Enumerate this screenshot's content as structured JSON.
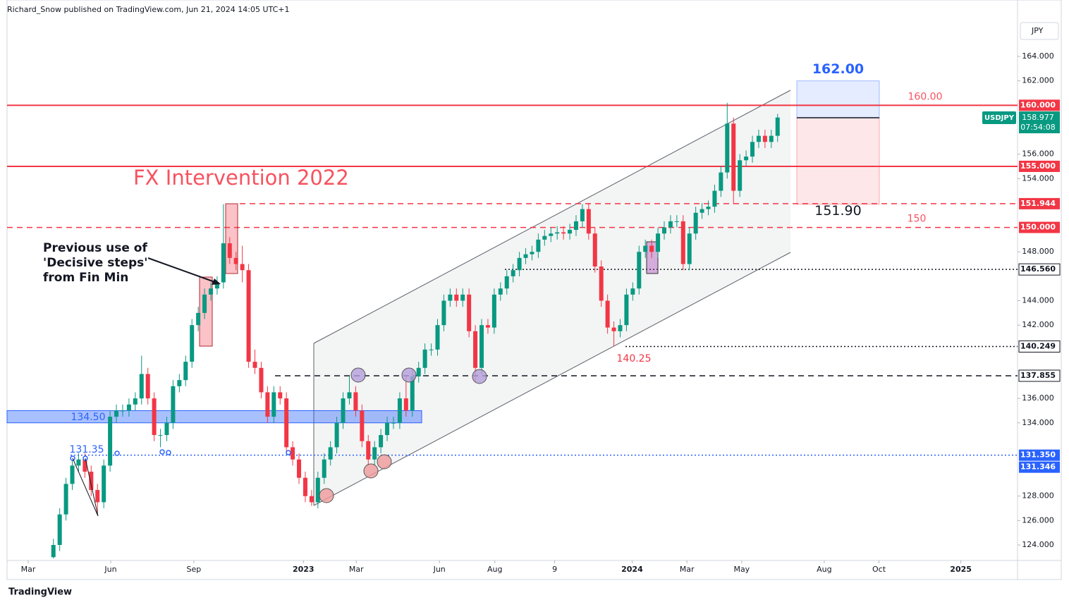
{
  "header": "Richard_Snow published on TradingView.com, Jun 21, 2024 14:05 UTC+1",
  "footer": "TradingView",
  "chart_data": {
    "type": "candlestick",
    "currency": "JPY",
    "symbol": "USDJPY",
    "last_price": {
      "value": 158.977,
      "label": "158.977"
    },
    "countdown": "07:54:08",
    "up_color": "#089981",
    "down_color": "#f23645",
    "xlim": [
      -3.36,
      157.1
    ],
    "ylim": [
      122.73,
      168.62
    ],
    "xticks": [
      {
        "value": 0,
        "label": "Mar"
      },
      {
        "value": 13.1,
        "label": "Jun"
      },
      {
        "value": 26.3,
        "label": "Sep"
      },
      {
        "value": 43.7,
        "label": "2023"
      },
      {
        "value": 52.1,
        "label": "Mar"
      },
      {
        "value": 65.3,
        "label": "Jun"
      },
      {
        "value": 74.1,
        "label": "Aug"
      },
      {
        "value": 83.6,
        "label": "9"
      },
      {
        "value": 95.9,
        "label": "2024"
      },
      {
        "value": 104.6,
        "label": "Mar"
      },
      {
        "value": 113.3,
        "label": "May"
      },
      {
        "value": 126.4,
        "label": "Aug"
      },
      {
        "value": 135.1,
        "label": "Oct"
      },
      {
        "value": 148.1,
        "label": "2025"
      }
    ],
    "yticks": [
      {
        "value": 124,
        "label": "124.000"
      },
      {
        "value": 126,
        "label": "126.000"
      },
      {
        "value": 128,
        "label": "128.000"
      },
      {
        "value": 134,
        "label": "134.000"
      },
      {
        "value": 136,
        "label": "136.000"
      },
      {
        "value": 142,
        "label": "142.000"
      },
      {
        "value": 144,
        "label": "144.000"
      },
      {
        "value": 148,
        "label": "148.000"
      },
      {
        "value": 154,
        "label": "154.000"
      },
      {
        "value": 156,
        "label": "156.000"
      },
      {
        "value": 162,
        "label": "162.000"
      },
      {
        "value": 164,
        "label": "164.000"
      }
    ],
    "x": [
      4,
      5,
      6,
      7,
      8,
      9,
      10,
      11,
      12,
      13,
      14,
      15,
      16,
      17,
      18,
      19,
      20,
      21,
      22,
      23,
      24,
      25,
      26,
      27,
      28,
      29,
      30,
      31,
      32,
      33,
      34,
      35,
      36,
      37,
      38,
      39,
      40,
      41,
      42,
      43,
      44,
      45,
      46,
      47,
      48,
      49,
      50,
      51,
      52,
      53,
      54,
      55,
      56,
      57,
      58,
      59,
      60,
      61,
      62,
      63,
      64,
      65,
      66,
      67,
      68,
      69,
      70,
      71,
      72,
      73,
      74,
      75,
      76,
      77,
      78,
      79,
      80,
      81,
      82,
      83,
      84,
      85,
      86,
      87,
      88,
      89,
      90,
      91,
      92,
      93,
      94,
      95,
      96,
      97,
      98,
      99,
      100,
      101,
      102,
      103,
      104,
      105,
      106,
      107,
      108,
      109,
      110,
      111,
      112,
      113,
      114,
      115,
      116,
      117,
      118,
      119
    ],
    "open": [
      123,
      124,
      126.5,
      129,
      130.5,
      131,
      130,
      128.5,
      127.5,
      130.5,
      134.5,
      135,
      135,
      135.5,
      136,
      138,
      136,
      133,
      133,
      134,
      137,
      137.5,
      139,
      142,
      143,
      144.5,
      145,
      145.5,
      148.7,
      147.5,
      147,
      146.5,
      139,
      138.5,
      136.5,
      134.5,
      136.5,
      136,
      132,
      131,
      129.5,
      128,
      127.5,
      129.5,
      131,
      132,
      134,
      136,
      136.5,
      135,
      132.5,
      131,
      132,
      133,
      134,
      134,
      136,
      135,
      137.8,
      138.5,
      140,
      140,
      142,
      144,
      144.5,
      144,
      144.5,
      141.5,
      138.5,
      142,
      141.8,
      144.5,
      145,
      146,
      146.5,
      147.5,
      147.8,
      148,
      149,
      149.3,
      149.5,
      149.6,
      149.5,
      149.8,
      150.5,
      151.5,
      149.5,
      146.8,
      144,
      141.8,
      141.5,
      142,
      144.5,
      145,
      148,
      148.5,
      148,
      149.5,
      150,
      150.5,
      150.5,
      147,
      149.5,
      151.2,
      151.5,
      151.7,
      153,
      154.5,
      158.5,
      153,
      155.5,
      155.8,
      157,
      157.5,
      157,
      157.5
    ],
    "high": [
      124.5,
      127,
      129.5,
      131,
      131.5,
      131.5,
      130.5,
      129,
      131,
      135,
      135.5,
      135.5,
      136,
      136.5,
      139.5,
      138.5,
      136.5,
      133.5,
      134.5,
      137.5,
      138,
      139.5,
      142.5,
      143.5,
      145,
      145.5,
      146,
      151.9,
      149.2,
      148,
      148.5,
      147,
      140,
      139,
      137,
      137,
      137,
      136.5,
      132.5,
      131.5,
      130,
      128.5,
      130,
      131.5,
      132.5,
      134.5,
      136.5,
      137.8,
      137,
      135.5,
      133,
      132.5,
      133.5,
      134.5,
      134.5,
      136.5,
      137.9,
      138.3,
      139,
      140.5,
      140.5,
      142.5,
      144.5,
      145,
      145,
      145,
      145,
      142,
      142.5,
      142.5,
      145,
      145.5,
      146.5,
      147,
      148,
      148.3,
      148.5,
      149.5,
      149.8,
      150,
      150.1,
      150.1,
      150.3,
      151,
      151.9,
      152,
      150,
      147.3,
      144.5,
      142.3,
      142.5,
      145,
      145.5,
      148.5,
      149,
      149,
      150,
      150.5,
      151,
      151,
      151,
      150,
      151.7,
      152,
      152.2,
      153.5,
      155,
      160.2,
      159,
      156,
      156.3,
      157.5,
      158,
      158,
      158,
      159.3
    ],
    "low": [
      122.9,
      123.5,
      126,
      128.5,
      130,
      129.5,
      128,
      126.5,
      127,
      130,
      134,
      134.5,
      134.5,
      135,
      135.5,
      135.5,
      132.5,
      132,
      132.5,
      133.5,
      136.5,
      137,
      138.5,
      141.5,
      142.5,
      144,
      144.5,
      145,
      147,
      146.5,
      145.5,
      138.5,
      138,
      136,
      134,
      134,
      135.5,
      131.5,
      130.5,
      129,
      127.5,
      127.2,
      127,
      129,
      130.5,
      131.5,
      133.5,
      135.5,
      134.5,
      132,
      130.5,
      130.5,
      131.5,
      132.5,
      133.5,
      133.5,
      134.5,
      134.5,
      137.3,
      138,
      139.5,
      139.5,
      141.5,
      143.5,
      143.5,
      143.5,
      141,
      137.3,
      138,
      141.3,
      141.3,
      144,
      144.5,
      145.5,
      146,
      147,
      147.3,
      147.5,
      148.5,
      148.8,
      149,
      149,
      149,
      149.3,
      150,
      149,
      146.3,
      143.5,
      141.3,
      140.25,
      141,
      141.5,
      144,
      144.5,
      147.5,
      147.5,
      147.5,
      149,
      149.5,
      150,
      146.5,
      146.5,
      149,
      150.7,
      151,
      151.2,
      152.5,
      154,
      151.9,
      152.5,
      155,
      155.3,
      156.5,
      156.5,
      156.5,
      157
    ],
    "close": [
      124,
      126.5,
      129,
      130.5,
      131,
      130,
      128.5,
      127.5,
      130.5,
      134.5,
      135,
      135,
      135.5,
      136,
      138,
      136,
      133,
      133,
      134,
      137,
      137.5,
      139,
      142,
      143,
      144.5,
      145,
      145.5,
      148.7,
      147.5,
      147,
      146.5,
      139,
      138.5,
      136.5,
      134.5,
      136.5,
      136,
      132,
      131,
      129.5,
      128,
      127.5,
      129.5,
      131,
      132,
      134,
      136,
      136.5,
      135,
      132.5,
      131,
      132,
      133,
      134,
      134,
      136,
      135,
      137.8,
      138.5,
      140,
      140,
      142,
      144,
      144.5,
      144,
      144.5,
      141.5,
      138.5,
      142,
      141.8,
      144.5,
      145,
      146,
      146.5,
      147.5,
      147.8,
      148,
      149,
      149.3,
      149.5,
      149.6,
      149.5,
      149.8,
      150.5,
      151.5,
      149.5,
      146.8,
      144,
      141.8,
      141.5,
      142,
      144.5,
      145,
      148,
      148.5,
      148,
      149.5,
      150,
      150.5,
      150.5,
      147,
      149.5,
      151.2,
      151.5,
      151.7,
      153,
      154.5,
      158.5,
      153,
      155.5,
      155.8,
      157,
      157.5,
      157,
      157.5,
      159
    ],
    "levels": [
      {
        "value": 160,
        "label": "160.000",
        "color": "#f23645",
        "style": "solid"
      },
      {
        "value": 160,
        "label": "160.000",
        "color": "#f23645",
        "style": "none"
      },
      {
        "value": 155,
        "label": "155.000",
        "color": "#f23645",
        "style": "solid"
      },
      {
        "value": 151.944,
        "label": "151.944",
        "color": "#f23645",
        "style": "dashed"
      },
      {
        "value": 150,
        "label": "150.000",
        "color": "#f23645",
        "style": "dashed"
      },
      {
        "value": 146.56,
        "label": "146.560",
        "color": "#131722",
        "style": "dotted"
      },
      {
        "value": 140.249,
        "label": "140.249",
        "color": "#131722",
        "style": "dotted"
      },
      {
        "value": 137.855,
        "label": "137.855",
        "color": "#131722",
        "style": "dashed"
      },
      {
        "value": 131.35,
        "label": "131.350",
        "color": "#2962ff",
        "style": "dotted"
      },
      {
        "value": 131.346,
        "label": "131.346",
        "color": "#2962ff",
        "style": "none"
      }
    ],
    "level_notes": [
      {
        "value": 160,
        "label": "160.00"
      },
      {
        "value": 150,
        "label": "150"
      }
    ],
    "zone": {
      "low": 134,
      "high": 135,
      "label": "134.50"
    },
    "support_label": "131.35",
    "low_label": "140.25",
    "position": {
      "target": 162,
      "target_label": "162.00",
      "stop": 151.9,
      "stop_label": "151.90",
      "entry": 158.977
    },
    "annotations": {
      "intervention": "FX Intervention 2022",
      "note": [
        "Previous use of",
        "'Decisive steps'",
        "from Fin Min"
      ]
    }
  }
}
